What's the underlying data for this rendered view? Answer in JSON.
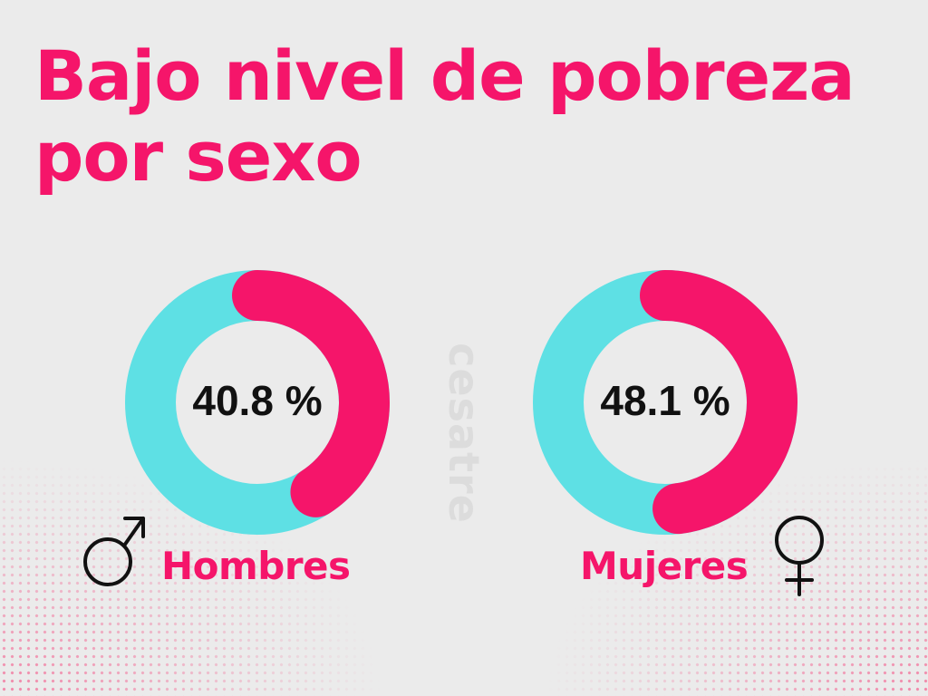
{
  "title_line1": "Bajo nivel de pobreza",
  "title_line2": "por sexo",
  "watermark": "cesatre",
  "colors": {
    "accent": "#f5156a",
    "secondary": "#5ee0e4",
    "background": "#ebebeb"
  },
  "chart_data": [
    {
      "type": "pie",
      "category": "Hombres",
      "value": 40.8,
      "remainder": 59.2,
      "value_label": "40.8 %",
      "icon": "male-symbol-icon"
    },
    {
      "type": "pie",
      "category": "Mujeres",
      "value": 48.1,
      "remainder": 51.9,
      "value_label": "48.1 %",
      "icon": "female-symbol-icon"
    }
  ]
}
